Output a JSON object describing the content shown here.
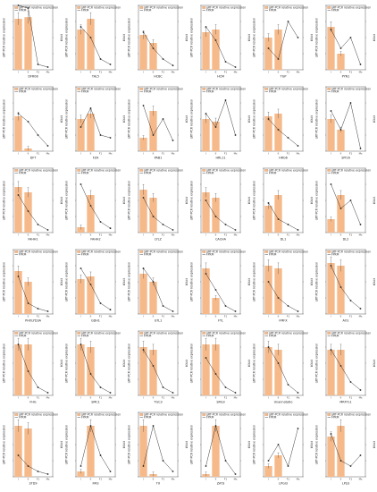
{
  "figure": {
    "legend_bar_label": "qRT-PCR relative expression",
    "legend_line_label": "FPKM",
    "left_axis_label": "qRT-PCR relative expression",
    "right_axis_label": "FPKM",
    "bar_color": "#f5b98a",
    "line_color": "#222222"
  },
  "chart_data": [
    {
      "type": "bar",
      "gene": "DFR08",
      "categories": [
        "I",
        "II",
        "F1",
        "Ms"
      ],
      "values": [
        95,
        98,
        0,
        0
      ],
      "fpkm": [
        120,
        115,
        10,
        5
      ],
      "ylim": [
        0,
        120
      ]
    },
    {
      "type": "bar",
      "gene": "TAL5",
      "categories": [
        "I",
        "II",
        "F1",
        "Ms"
      ],
      "values": [
        75,
        95,
        0,
        0
      ],
      "fpkm": [
        80,
        60,
        20,
        10
      ],
      "ylim": [
        0,
        120
      ]
    },
    {
      "type": "bar",
      "gene": "HCBC",
      "categories": [
        "I",
        "II",
        "F1",
        "Ms"
      ],
      "values": [
        65,
        50,
        0,
        0
      ],
      "fpkm": [
        70,
        40,
        20,
        8
      ],
      "ylim": [
        0,
        120
      ]
    },
    {
      "type": "bar",
      "gene": "HCM",
      "categories": [
        "I",
        "II",
        "F1",
        "Ms"
      ],
      "values": [
        70,
        75,
        0,
        0
      ],
      "fpkm": [
        80,
        55,
        15,
        5
      ],
      "ylim": [
        0,
        120
      ]
    },
    {
      "type": "bar",
      "gene": "TGP",
      "categories": [
        "I",
        "II",
        "F1",
        "Ms"
      ],
      "values": [
        60,
        75,
        0,
        0
      ],
      "fpkm": [
        40,
        20,
        90,
        60
      ],
      "ylim": [
        0,
        120
      ]
    },
    {
      "type": "bar",
      "gene": "PYN1",
      "categories": [
        "I",
        "II",
        "F1",
        "Ms"
      ],
      "values": [
        80,
        30,
        0,
        0
      ],
      "fpkm": [
        75,
        40,
        60,
        10
      ],
      "ylim": [
        0,
        120
      ]
    },
    {
      "type": "bar",
      "gene": "DFT",
      "categories": [
        "I",
        "II",
        "F1",
        "Ms"
      ],
      "values": [
        65,
        5,
        0,
        0
      ],
      "fpkm": [
        70,
        55,
        30,
        10
      ],
      "ylim": [
        0,
        120
      ]
    },
    {
      "type": "bar",
      "gene": "FZA",
      "categories": [
        "I",
        "II",
        "F1",
        "Ms"
      ],
      "values": [
        60,
        70,
        0,
        0
      ],
      "fpkm": [
        45,
        80,
        30,
        25
      ],
      "ylim": [
        0,
        120
      ]
    },
    {
      "type": "bar",
      "gene": "PAB1",
      "categories": [
        "I",
        "II",
        "F1",
        "Ms"
      ],
      "values": [
        25,
        75,
        0,
        0
      ],
      "fpkm": [
        85,
        30,
        60,
        20
      ],
      "ylim": [
        0,
        120
      ]
    },
    {
      "type": "bar",
      "gene": "HRL11",
      "categories": [
        "I",
        "II",
        "F1",
        "Ms"
      ],
      "values": [
        60,
        55,
        0,
        0
      ],
      "fpkm": [
        70,
        45,
        95,
        30
      ],
      "ylim": [
        0,
        120
      ]
    },
    {
      "type": "bar",
      "gene": "HRG6",
      "categories": [
        "I",
        "II",
        "F1",
        "Ms"
      ],
      "values": [
        65,
        70,
        0,
        0
      ],
      "fpkm": [
        60,
        40,
        25,
        10
      ],
      "ylim": [
        0,
        120
      ]
    },
    {
      "type": "bar",
      "gene": "SPI16",
      "categories": [
        "I",
        "II",
        "F1",
        "Ms"
      ],
      "values": [
        60,
        40,
        0,
        0
      ],
      "fpkm": [
        75,
        40,
        90,
        5
      ],
      "ylim": [
        0,
        120
      ]
    },
    {
      "type": "bar",
      "gene": "FAHH1",
      "categories": [
        "I",
        "II",
        "F1",
        "Ms"
      ],
      "values": [
        85,
        75,
        0,
        0
      ],
      "fpkm": [
        70,
        40,
        15,
        5
      ],
      "ylim": [
        0,
        120
      ]
    },
    {
      "type": "bar",
      "gene": "FAHH2",
      "categories": [
        "I",
        "II",
        "F1",
        "Ms"
      ],
      "values": [
        10,
        70,
        0,
        0
      ],
      "fpkm": [
        90,
        50,
        20,
        8
      ],
      "ylim": [
        0,
        120
      ]
    },
    {
      "type": "bar",
      "gene": "LYLZ",
      "categories": [
        "I",
        "II",
        "F1",
        "Ms"
      ],
      "values": [
        80,
        65,
        0,
        0
      ],
      "fpkm": [
        65,
        30,
        15,
        5
      ],
      "ylim": [
        0,
        120
      ]
    },
    {
      "type": "bar",
      "gene": "CACHA",
      "categories": [
        "I",
        "II",
        "F1",
        "Ms"
      ],
      "values": [
        75,
        65,
        0,
        0
      ],
      "fpkm": [
        60,
        30,
        15,
        5
      ],
      "ylim": [
        0,
        120
      ]
    },
    {
      "type": "bar",
      "gene": "DL1",
      "categories": [
        "I",
        "II",
        "F1",
        "Ms"
      ],
      "values": [
        50,
        70,
        0,
        0
      ],
      "fpkm": [
        55,
        25,
        15,
        5
      ],
      "ylim": [
        0,
        120
      ]
    },
    {
      "type": "bar",
      "gene": "DL2",
      "categories": [
        "I",
        "II",
        "F1",
        "Ms"
      ],
      "values": [
        25,
        70,
        0,
        0
      ],
      "fpkm": [
        90,
        45,
        60,
        15
      ],
      "ylim": [
        0,
        120
      ]
    },
    {
      "type": "bar",
      "gene": "PHOLYD3A",
      "categories": [
        "I",
        "II",
        "F1",
        "Ms"
      ],
      "values": [
        80,
        60,
        0,
        0
      ],
      "fpkm": [
        70,
        20,
        10,
        5
      ],
      "ylim": [
        0,
        120
      ]
    },
    {
      "type": "bar",
      "gene": "GDH1",
      "categories": [
        "I",
        "II",
        "F1",
        "Ms"
      ],
      "values": [
        65,
        70,
        0,
        0
      ],
      "fpkm": [
        85,
        55,
        20,
        8
      ],
      "ylim": [
        0,
        120
      ]
    },
    {
      "type": "bar",
      "gene": "GTL1",
      "categories": [
        "I",
        "II",
        "F1",
        "Ms"
      ],
      "values": [
        75,
        60,
        0,
        0
      ],
      "fpkm": [
        85,
        60,
        15,
        5
      ],
      "ylim": [
        0,
        120
      ]
    },
    {
      "type": "bar",
      "gene": "FYL",
      "categories": [
        "I",
        "II",
        "F1",
        "Ms"
      ],
      "values": [
        85,
        30,
        0,
        0
      ],
      "fpkm": [
        75,
        45,
        15,
        5
      ],
      "ylim": [
        0,
        120
      ]
    },
    {
      "type": "bar",
      "gene": "FMFX",
      "categories": [
        "I",
        "II",
        "F1",
        "Ms"
      ],
      "values": [
        90,
        85,
        0,
        0
      ],
      "fpkm": [
        60,
        30,
        15,
        5
      ],
      "ylim": [
        0,
        120
      ]
    },
    {
      "type": "bar",
      "gene": "AO1",
      "categories": [
        "I",
        "II",
        "F1",
        "Ms"
      ],
      "values": [
        95,
        90,
        0,
        0
      ],
      "fpkm": [
        90,
        50,
        25,
        10
      ],
      "ylim": [
        0,
        120
      ]
    },
    {
      "type": "bar",
      "gene": "FHG",
      "categories": [
        "I",
        "II",
        "F1",
        "Ms"
      ],
      "values": [
        95,
        95,
        0,
        0
      ],
      "fpkm": [
        95,
        45,
        15,
        5
      ],
      "ylim": [
        0,
        120
      ]
    },
    {
      "type": "bar",
      "gene": "SMC1",
      "categories": [
        "I",
        "II",
        "F1",
        "Ms"
      ],
      "values": [
        95,
        90,
        0,
        0
      ],
      "fpkm": [
        95,
        40,
        15,
        5
      ],
      "ylim": [
        0,
        120
      ]
    },
    {
      "type": "bar",
      "gene": "TGC3",
      "categories": [
        "I",
        "II",
        "F1",
        "Ms"
      ],
      "values": [
        90,
        85,
        0,
        0
      ],
      "fpkm": [
        85,
        55,
        15,
        5
      ],
      "ylim": [
        0,
        120
      ]
    },
    {
      "type": "bar",
      "gene": "SRG3",
      "categories": [
        "I",
        "II",
        "F1",
        "Ms"
      ],
      "values": [
        95,
        95,
        0,
        0
      ],
      "fpkm": [
        70,
        40,
        15,
        5
      ],
      "ylim": [
        0,
        120
      ]
    },
    {
      "type": "bar",
      "gene": "Unannotatio",
      "categories": [
        "I",
        "II",
        "F1",
        "Ms"
      ],
      "values": [
        90,
        85,
        0,
        0
      ],
      "fpkm": [
        90,
        60,
        20,
        5
      ],
      "ylim": [
        0,
        120
      ]
    },
    {
      "type": "bar",
      "gene": "MRFYL1",
      "categories": [
        "I",
        "II",
        "F1",
        "Ms"
      ],
      "values": [
        85,
        85,
        0,
        0
      ],
      "fpkm": [
        85,
        55,
        25,
        10
      ],
      "ylim": [
        0,
        120
      ]
    },
    {
      "type": "bar",
      "gene": "STD9",
      "categories": [
        "I",
        "II",
        "F1",
        "Ms"
      ],
      "values": [
        95,
        90,
        0,
        0
      ],
      "fpkm": [
        40,
        20,
        10,
        5
      ],
      "ylim": [
        0,
        120
      ]
    },
    {
      "type": "bar",
      "gene": "FM3",
      "categories": [
        "I",
        "II",
        "F1",
        "Ms"
      ],
      "values": [
        10,
        95,
        0,
        0
      ],
      "fpkm": [
        20,
        95,
        40,
        10
      ],
      "ylim": [
        0,
        120
      ]
    },
    {
      "type": "bar",
      "gene": "TX",
      "categories": [
        "I",
        "II",
        "F1",
        "Ms"
      ],
      "values": [
        95,
        5,
        0,
        0
      ],
      "fpkm": [
        20,
        95,
        30,
        10
      ],
      "ylim": [
        0,
        120
      ]
    },
    {
      "type": "bar",
      "gene": "ZAT3",
      "categories": [
        "I",
        "II",
        "F1",
        "Ms"
      ],
      "values": [
        5,
        95,
        0,
        0
      ],
      "fpkm": [
        20,
        95,
        30,
        5
      ],
      "ylim": [
        0,
        120
      ]
    },
    {
      "type": "bar",
      "gene": "LPGI3",
      "categories": [
        "I",
        "II",
        "F1",
        "Ms"
      ],
      "values": [
        20,
        40,
        0,
        0
      ],
      "fpkm": [
        30,
        60,
        20,
        90
      ],
      "ylim": [
        0,
        120
      ]
    },
    {
      "type": "bar",
      "gene": "LPS3",
      "categories": [
        "I",
        "II",
        "F1",
        "Ms"
      ],
      "values": [
        75,
        95,
        0,
        0
      ],
      "fpkm": [
        80,
        30,
        20,
        40
      ],
      "ylim": [
        0,
        120
      ]
    }
  ]
}
